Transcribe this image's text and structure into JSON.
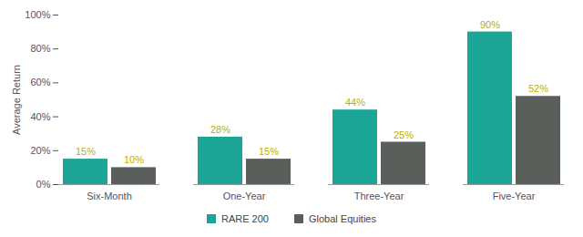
{
  "chart_data": {
    "type": "bar",
    "categories": [
      "Six-Month",
      "One-Year",
      "Three-Year",
      "Five-Year"
    ],
    "series": [
      {
        "name": "RARE 200",
        "color": "#1ba596",
        "values": [
          15,
          28,
          44,
          90
        ],
        "value_labels": [
          "15%",
          "28%",
          "44%",
          "90%"
        ]
      },
      {
        "name": "Global Equities",
        "color": "#5b5f5b",
        "values": [
          10,
          15,
          25,
          52
        ],
        "value_labels": [
          "10%",
          "15%",
          "25%",
          "52%"
        ]
      }
    ],
    "y_label": "Average Return",
    "ylim": [
      0,
      100
    ],
    "yticks": [
      {
        "value": 0,
        "label": "0%"
      },
      {
        "value": 20,
        "label": "20%"
      },
      {
        "value": 40,
        "label": "40%"
      },
      {
        "value": 60,
        "label": "60%"
      },
      {
        "value": 80,
        "label": "80%"
      },
      {
        "value": 100,
        "label": "100%"
      }
    ],
    "grid": false,
    "legend": "bottom",
    "data_labels": true
  }
}
